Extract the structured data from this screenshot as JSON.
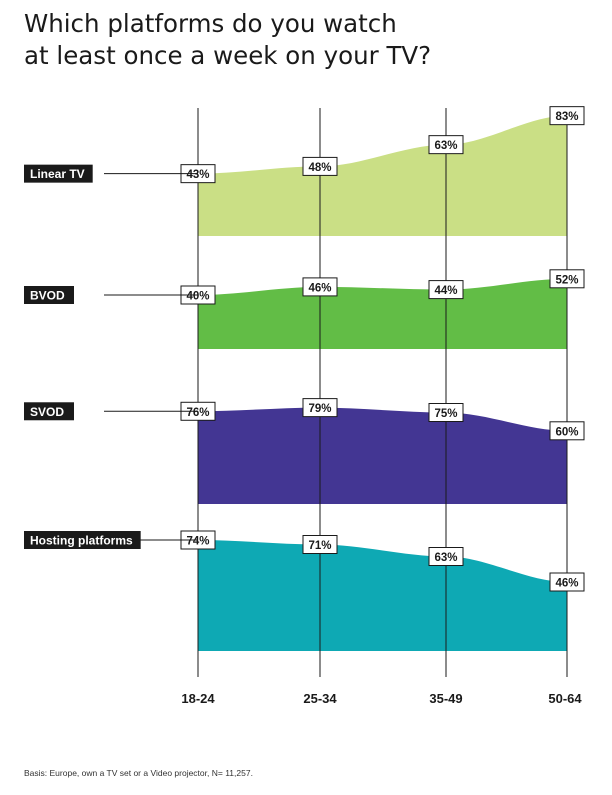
{
  "title": [
    "Which platforms do you watch",
    "at least once a week on your TV?"
  ],
  "footnote": "Basis: Europe, own a TV set or a Video projector, N= 11,257.",
  "chart_data": {
    "type": "area",
    "categories": [
      "18-24",
      "25-34",
      "35-49",
      "50-64"
    ],
    "value_suffix": "%",
    "series": [
      {
        "name": "Linear TV",
        "values": [
          43,
          48,
          63,
          83
        ],
        "color": "#cadf85"
      },
      {
        "name": "BVOD",
        "values": [
          40,
          46,
          44,
          52
        ],
        "color": "#62bd46"
      },
      {
        "name": "SVOD",
        "values": [
          76,
          79,
          75,
          60
        ],
        "color": "#433693"
      },
      {
        "name": "Hosting platforms",
        "values": [
          74,
          71,
          63,
          46
        ],
        "color": "#0ea9b4"
      }
    ]
  }
}
